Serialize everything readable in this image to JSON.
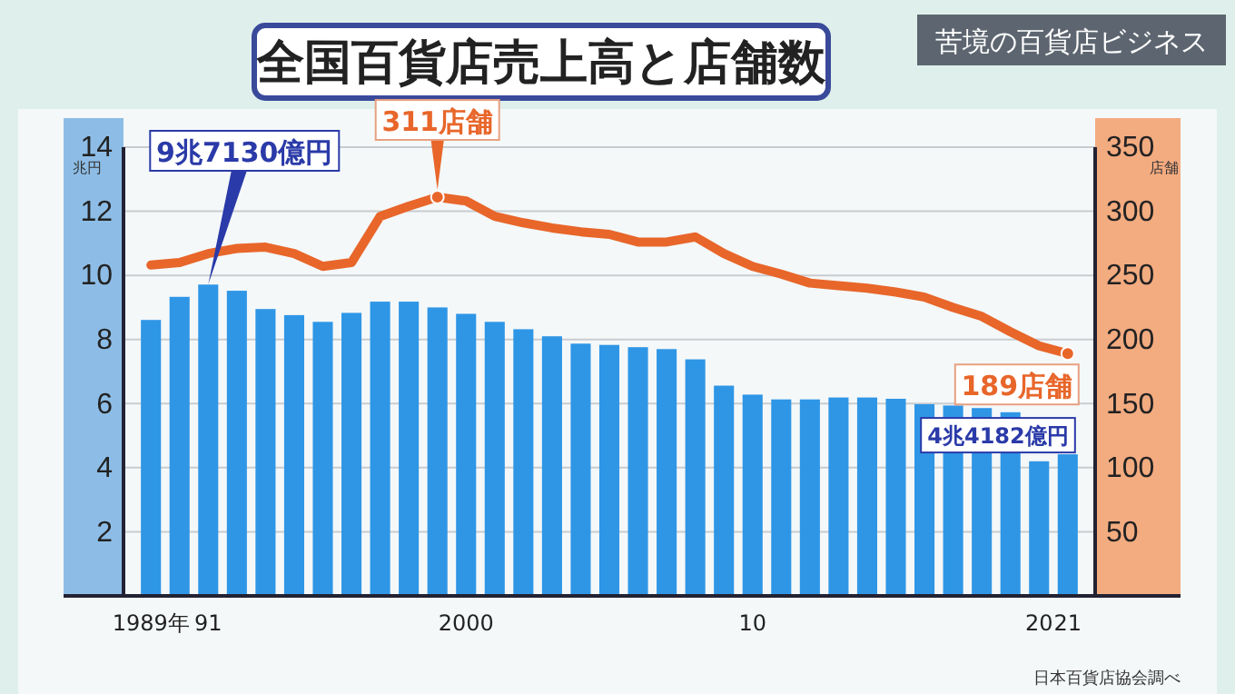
{
  "chart_data": {
    "type": "bar",
    "title": "全国百貨店売上高と店舗数",
    "subtitle": "苦境の百貨店ビジネス",
    "ylabel": "兆円",
    "y2label": "店舗",
    "categories": [
      "1989年",
      null,
      "91",
      null,
      null,
      null,
      null,
      null,
      null,
      null,
      null,
      "2000",
      null,
      null,
      null,
      null,
      null,
      null,
      null,
      null,
      null,
      "10",
      null,
      null,
      null,
      null,
      null,
      null,
      null,
      null,
      null,
      "20",
      "21"
    ],
    "series": [
      {
        "type": "bar",
        "color": "#2f96e6",
        "values": [
          8.61,
          9.33,
          9.713,
          9.52,
          8.95,
          8.76,
          8.55,
          8.83,
          9.18,
          9.18,
          9.0,
          8.8,
          8.55,
          8.32,
          8.1,
          7.87,
          7.83,
          7.76,
          7.7,
          7.38,
          6.56,
          6.28,
          6.13,
          6.13,
          6.19,
          6.19,
          6.15,
          5.98,
          5.94,
          5.86,
          5.73,
          4.2,
          4.4182
        ]
      },
      {
        "type": "line",
        "axis": "y2",
        "color": "#e8662a",
        "values": [
          258,
          260,
          267,
          271,
          272,
          267,
          257,
          260,
          296,
          304,
          311,
          308,
          296,
          291,
          287,
          284,
          282,
          276,
          276,
          280,
          267,
          257,
          251,
          244,
          242,
          240,
          237,
          233,
          225,
          218,
          206,
          195,
          189
        ],
        "value_labels": [
          null,
          null,
          null,
          null,
          null,
          null,
          null,
          null,
          null,
          null,
          "311店舗",
          null,
          null,
          null,
          null,
          null,
          null,
          null,
          null,
          null,
          null,
          null,
          null,
          null,
          null,
          null,
          null,
          null,
          null,
          null,
          null,
          null,
          "189店舗"
        ]
      }
    ],
    "ylim": [
      0,
      14
    ],
    "yticks": [
      2,
      4,
      6,
      8,
      10,
      12,
      14
    ],
    "y2lim": [
      0,
      350
    ],
    "y2ticks": [
      50,
      100,
      150,
      200,
      250,
      300,
      350
    ],
    "grid": "y",
    "annotations": [
      {
        "text": "9兆7130億円",
        "x": "91",
        "y": 9.713
      },
      {
        "text": "4兆4182億円",
        "x": "21",
        "y": 4.4182
      },
      "日本百貨店協会調べ"
    ]
  }
}
